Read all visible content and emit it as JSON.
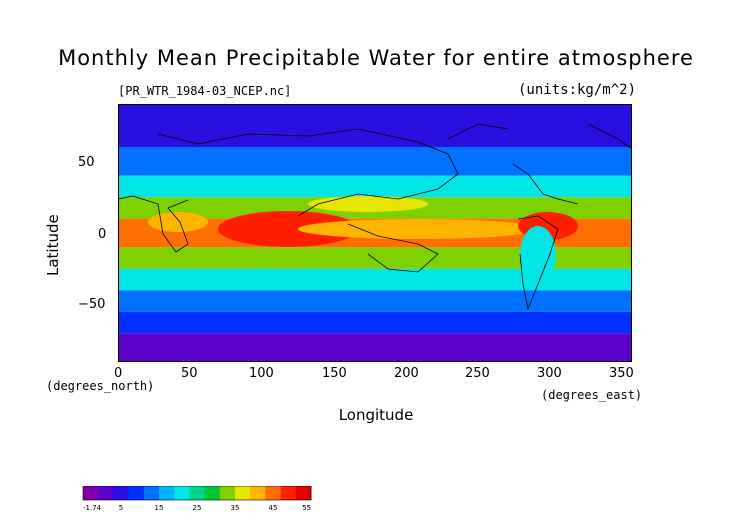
{
  "title": "Monthly Mean Precipitable Water for entire atmosphere",
  "file_label": "[PR_WTR_1984-03_NCEP.nc]",
  "units_label": "(units:kg/m^2)",
  "chart_data": {
    "type": "heatmap",
    "title": "Monthly Mean Precipitable Water for entire atmosphere",
    "xlabel": "Longitude",
    "ylabel": "Latitude",
    "x_unit_label": "(degrees_east)",
    "y_unit_label": "(degrees_north)",
    "xlim": [
      0,
      357.5
    ],
    "ylim": [
      -90,
      90
    ],
    "x_ticks": [
      0,
      50,
      100,
      150,
      200,
      250,
      300,
      350
    ],
    "y_ticks": [
      -50,
      0,
      50
    ],
    "colorbar": {
      "min": -1.74,
      "max": 55,
      "tick_labels": [
        "-1.74",
        "5",
        "15",
        "25",
        "35",
        "45",
        "55"
      ],
      "colors": [
        "#7f00a8",
        "#5a00c8",
        "#2a10e0",
        "#0030ff",
        "#0070ff",
        "#00b4ff",
        "#00e6e6",
        "#00d48a",
        "#00c832",
        "#7ed000",
        "#e6e600",
        "#ffb400",
        "#ff6e00",
        "#ff1e00",
        "#e00000"
      ]
    },
    "field_description_bands": [
      {
        "lat_from": 90,
        "lat_to": 60,
        "level": 2
      },
      {
        "lat_from": 60,
        "lat_to": 40,
        "level": 4
      },
      {
        "lat_from": 40,
        "lat_to": 25,
        "level": 6
      },
      {
        "lat_from": 25,
        "lat_to": 10,
        "level": 9
      },
      {
        "lat_from": 10,
        "lat_to": -10,
        "level": 12
      },
      {
        "lat_from": -10,
        "lat_to": -25,
        "level": 9
      },
      {
        "lat_from": -25,
        "lat_to": -40,
        "level": 6
      },
      {
        "lat_from": -40,
        "lat_to": -55,
        "level": 4
      },
      {
        "lat_from": -55,
        "lat_to": -70,
        "level": 3
      },
      {
        "lat_from": -70,
        "lat_to": -90,
        "level": 1
      }
    ]
  }
}
